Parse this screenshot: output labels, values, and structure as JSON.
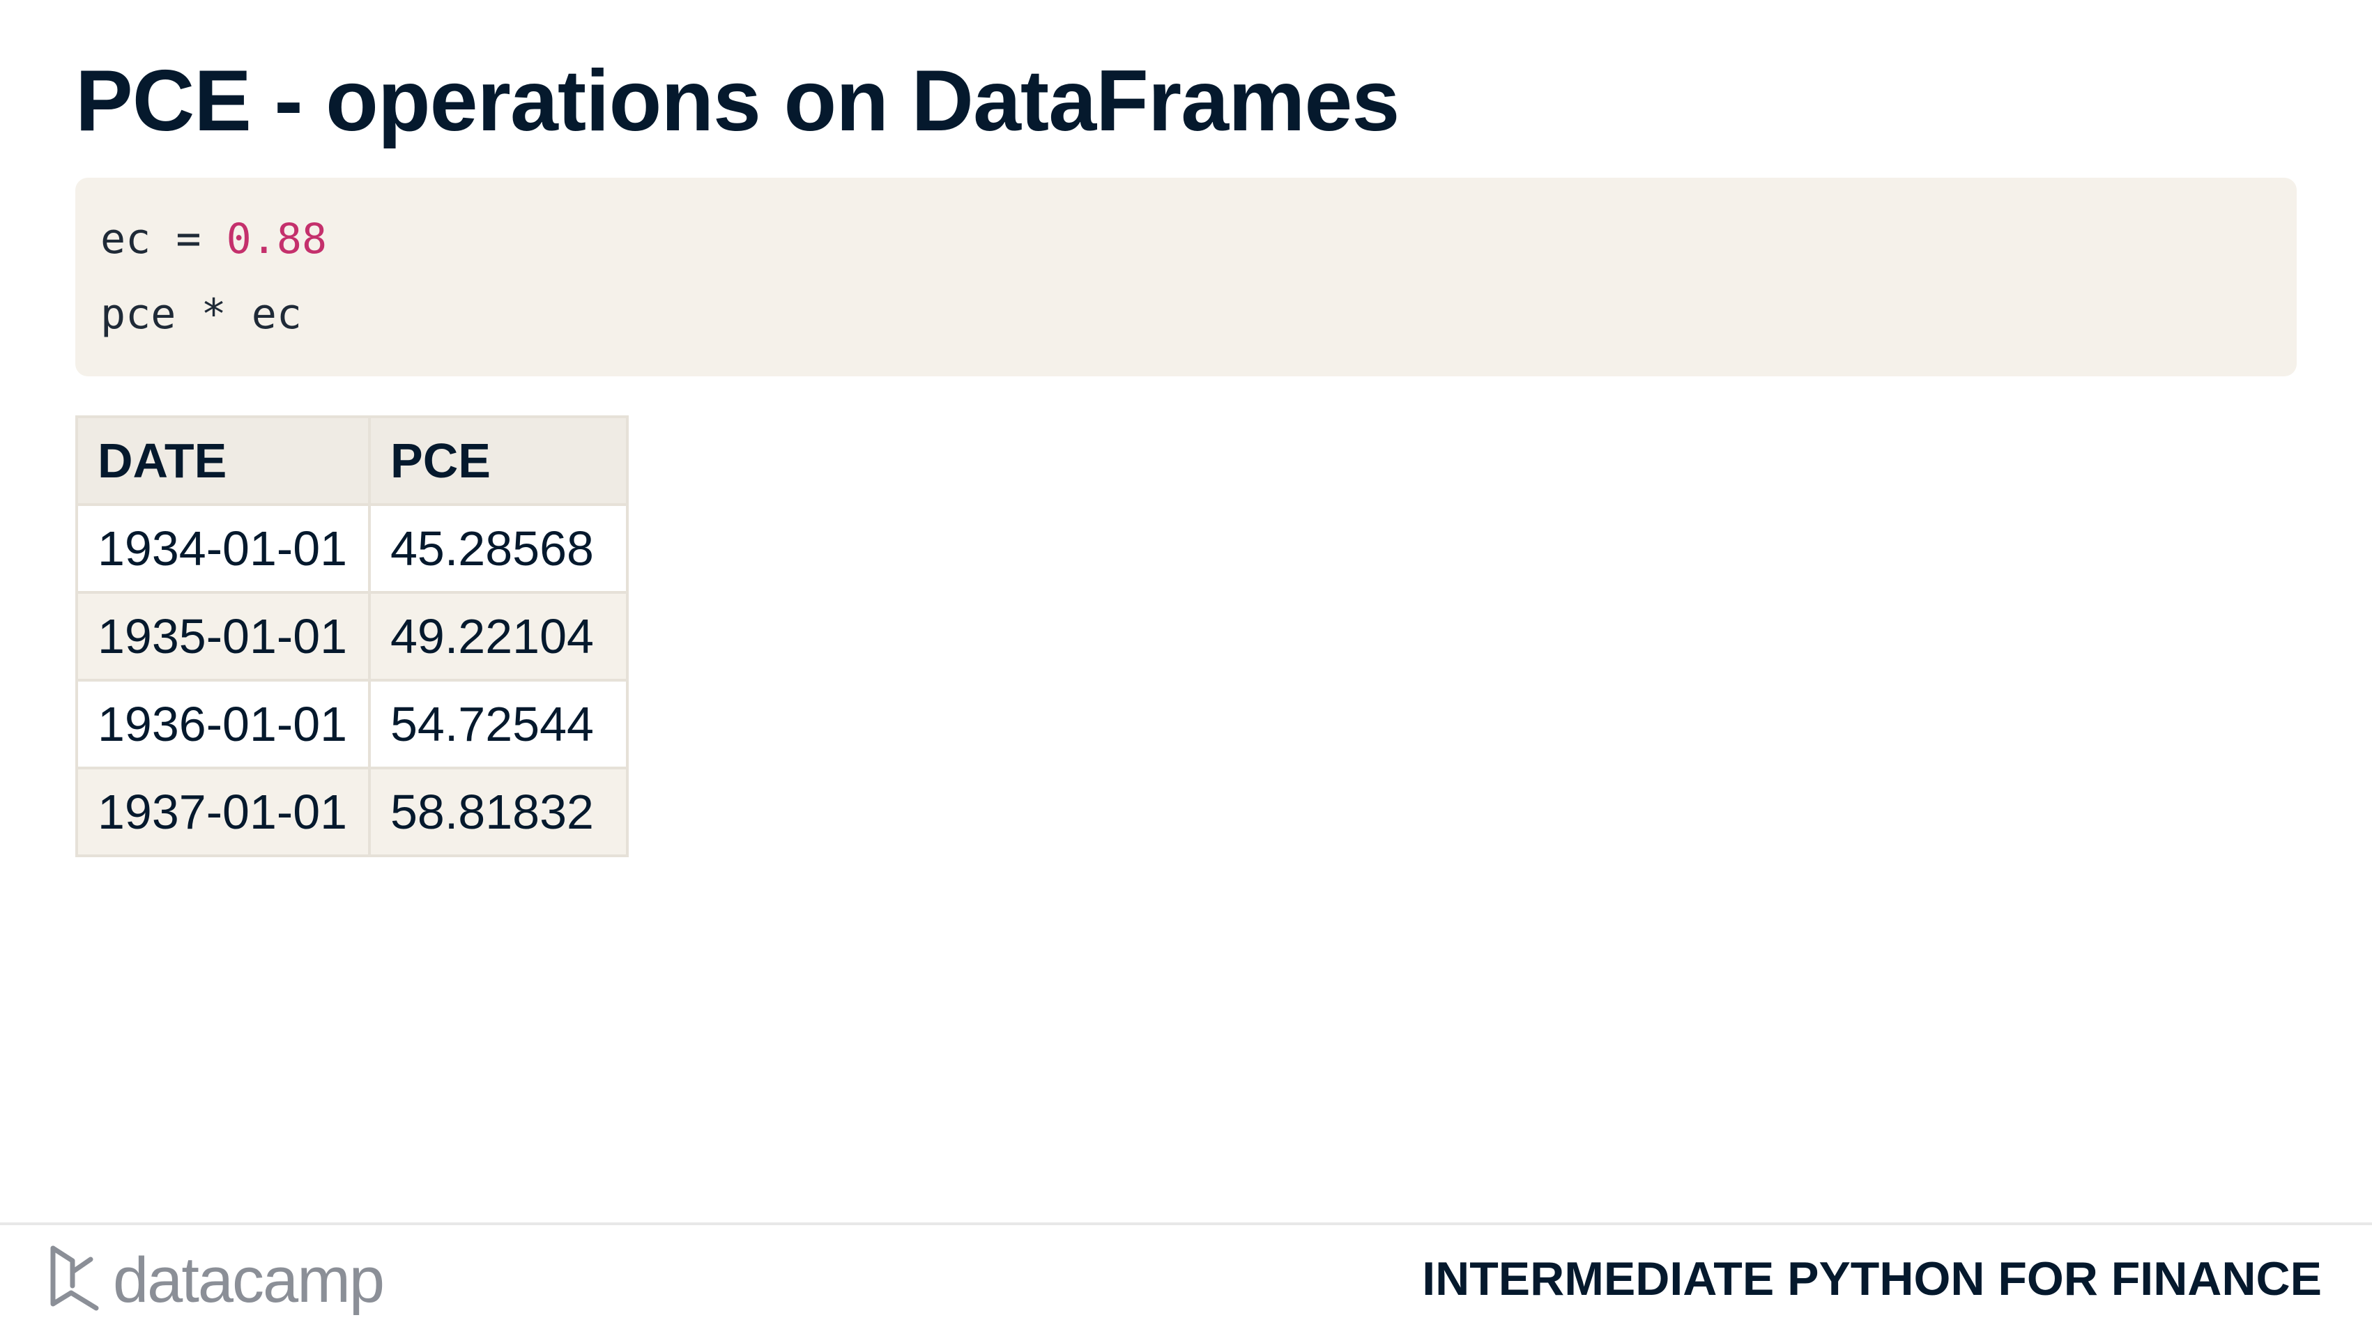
{
  "slide": {
    "title": "PCE - operations on DataFrames"
  },
  "code": {
    "line1": {
      "var": "ec",
      "op": " = ",
      "value": "0.88"
    },
    "line2": "pce * ec"
  },
  "table": {
    "columns": [
      "DATE",
      "PCE"
    ],
    "rows": [
      [
        "1934-01-01",
        "45.28568"
      ],
      [
        "1935-01-01",
        "49.22104"
      ],
      [
        "1936-01-01",
        "54.72544"
      ],
      [
        "1937-01-01",
        "58.81832"
      ]
    ]
  },
  "footer": {
    "logo_text": "datacamp",
    "logo_icon": "datacamp-logo-icon",
    "course_title": "INTERMEDIATE PYTHON FOR FINANCE"
  },
  "colors": {
    "title": "#05192d",
    "code_background": "#f5f1ea",
    "number_literal": "#c4306c",
    "logo": "#8b8f97"
  }
}
